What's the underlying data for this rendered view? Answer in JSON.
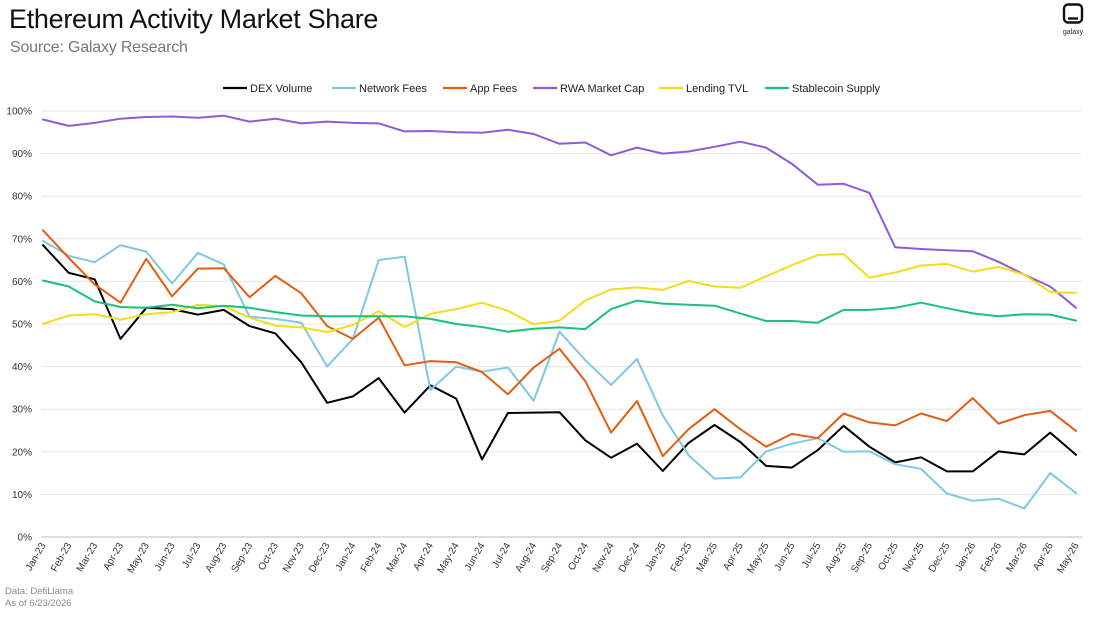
{
  "header": {
    "title": "Ethereum Activity Market Share",
    "subtitle": "Source: Galaxy Research",
    "logo_text": "galaxy"
  },
  "footer": {
    "line1": "Data: DefiLlama",
    "line2": "As of 6/23/2026"
  },
  "chart_data": {
    "type": "line",
    "x": [
      "Jan-23",
      "Feb-23",
      "Mar-23",
      "Apr-23",
      "May-23",
      "Jun-23",
      "Jul-23",
      "Aug-23",
      "Sep-23",
      "Oct-23",
      "Nov-23",
      "Dec-23",
      "Jan-24",
      "Feb-24",
      "Mar-24",
      "Apr-24",
      "May-24",
      "Jun-24",
      "Jul-24",
      "Aug-24",
      "Sep-24",
      "Oct-24",
      "Nov-24",
      "Dec-24",
      "Jan-25",
      "Feb-25",
      "Mar-25",
      "Apr-25",
      "May-25",
      "Jun-25",
      "Jul-25",
      "Aug-25",
      "Sep-25",
      "Oct-25",
      "Nov-25",
      "Dec-25",
      "Jan-26",
      "Feb-26",
      "Mar-26",
      "Apr-26",
      "May-26"
    ],
    "y_ticks": [
      "0%",
      "10%",
      "20%",
      "30%",
      "40%",
      "50%",
      "60%",
      "70%",
      "80%",
      "90%",
      "100%"
    ],
    "ylim": [
      0,
      100
    ],
    "grid": true,
    "legend_position": "top",
    "series": [
      {
        "name": "DEX Volume",
        "color": "#000000",
        "values": [
          68.5,
          62,
          60.5,
          46.5,
          53.8,
          53.5,
          52.2,
          53.3,
          49.5,
          47.8,
          41,
          31.5,
          33,
          37.3,
          29.2,
          35.6,
          32.5,
          18.2,
          29.1,
          29.2,
          29.3,
          22.7,
          18.6,
          21.9,
          15.5,
          22.1,
          26.3,
          22.3,
          16.7,
          16.3,
          20.4,
          26.1,
          21.2,
          17.5,
          18.7,
          15.4,
          15.4,
          20.1,
          19.4,
          24.5,
          19.3
        ]
      },
      {
        "name": "Network Fees",
        "color": "#7ec8e3",
        "values": [
          69.5,
          66,
          64.5,
          68.5,
          67,
          59.5,
          66.7,
          64,
          51.7,
          51.2,
          50.3,
          40,
          46.5,
          65,
          65.8,
          34.5,
          40,
          38.8,
          39.8,
          32,
          48.2,
          41.5,
          35.7,
          41.8,
          28.5,
          19.2,
          13.7,
          14,
          20.1,
          21.9,
          23.2,
          20,
          20.1,
          17.1,
          16,
          10.2,
          8.5,
          9,
          6.7,
          15,
          10.3
        ]
      },
      {
        "name": "App Fees",
        "color": "#e35d12",
        "values": [
          72,
          65.5,
          59.3,
          55,
          65.3,
          56.5,
          63,
          63.1,
          56.3,
          61.3,
          57.2,
          49.5,
          46.5,
          51.5,
          40.3,
          41.3,
          41,
          38.7,
          33.5,
          39.8,
          44.2,
          36.6,
          24.5,
          31.9,
          19,
          25.3,
          30,
          25.3,
          21.2,
          24.2,
          23.2,
          29,
          26.9,
          26.2,
          29,
          27.2,
          32.6,
          26.6,
          28.6,
          29.6,
          24.9
        ]
      },
      {
        "name": "RWA Market Cap",
        "color": "#8e5bd9",
        "values": [
          98,
          96.5,
          97.2,
          98.2,
          98.6,
          98.7,
          98.4,
          98.9,
          97.5,
          98.2,
          97.1,
          97.5,
          97.2,
          97.1,
          95.2,
          95.3,
          95,
          94.9,
          95.6,
          94.6,
          92.3,
          92.6,
          89.6,
          91.4,
          90,
          90.5,
          91.6,
          92.8,
          91.4,
          87.6,
          82.7,
          82.9,
          80.8,
          68,
          67.6,
          67.3,
          67.1,
          64.6,
          61.6,
          58.8,
          53.8
        ]
      },
      {
        "name": "Lending TVL",
        "color": "#f2dc1f",
        "values": [
          50,
          52,
          52.3,
          51,
          52.3,
          52.8,
          54.5,
          54.2,
          51.5,
          49.6,
          49.2,
          48.1,
          49.8,
          53,
          49.3,
          52.4,
          53.5,
          55,
          53.1,
          49.9,
          50.8,
          55.5,
          58.1,
          58.6,
          58,
          60.1,
          58.8,
          58.5,
          61.2,
          63.8,
          66.2,
          66.4,
          60.9,
          62.1,
          63.7,
          64.1,
          62.3,
          63.4,
          61.6,
          57.5,
          57.3
        ]
      },
      {
        "name": "Stablecoin Supply",
        "color": "#1cc07c",
        "values": [
          60.2,
          58.8,
          55.3,
          54,
          53.8,
          54.5,
          53.7,
          54.3,
          53.8,
          52.8,
          52,
          51.8,
          51.8,
          51.8,
          51.8,
          51.2,
          50,
          49.3,
          48.2,
          48.9,
          49.2,
          48.8,
          53.5,
          55.5,
          54.8,
          54.5,
          54.3,
          52.5,
          50.7,
          50.7,
          50.3,
          53.3,
          53.3,
          53.8,
          55,
          53.7,
          52.5,
          51.8,
          52.3,
          52.2,
          50.8
        ]
      }
    ]
  }
}
